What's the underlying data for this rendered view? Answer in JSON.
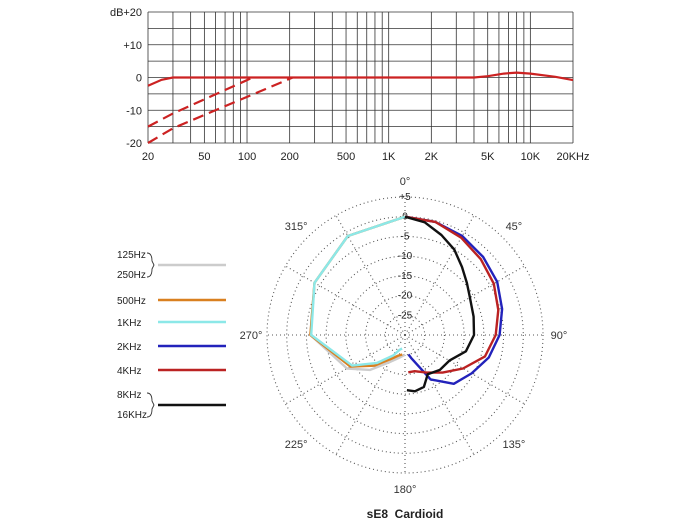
{
  "chart_data": [
    {
      "type": "line",
      "x_scale": "log",
      "xlim": [
        20,
        20000
      ],
      "ylim": [
        -20,
        20
      ],
      "y_unit": "dB",
      "x_ticks": [
        {
          "value": 20,
          "label": "20"
        },
        {
          "value": 50,
          "label": "50"
        },
        {
          "value": 100,
          "label": "100"
        },
        {
          "value": 200,
          "label": "200"
        },
        {
          "value": 500,
          "label": "500"
        },
        {
          "value": 1000,
          "label": "1K"
        },
        {
          "value": 2000,
          "label": "2K"
        },
        {
          "value": 5000,
          "label": "5K"
        },
        {
          "value": 10000,
          "label": "10K"
        },
        {
          "value": 20000,
          "label": "20KHz"
        }
      ],
      "y_ticks": [
        {
          "value": 20,
          "label": "+20"
        },
        {
          "value": 10,
          "label": "+10"
        },
        {
          "value": 0,
          "label": "0"
        },
        {
          "value": -10,
          "label": "-10"
        },
        {
          "value": -20,
          "label": "-20"
        }
      ],
      "grid": true,
      "color": "#cc2222",
      "series": [
        {
          "style": "solid",
          "points": [
            [
              20,
              -2.5
            ],
            [
              25,
              -0.7
            ],
            [
              30,
              0
            ],
            [
              100,
              0
            ],
            [
              1000,
              0
            ],
            [
              4000,
              0
            ],
            [
              5000,
              0.4
            ],
            [
              6500,
              1.2
            ],
            [
              8000,
              1.5
            ],
            [
              10000,
              1.2
            ],
            [
              15000,
              0.2
            ],
            [
              20000,
              -0.8
            ]
          ]
        },
        {
          "style": "dashed",
          "points": [
            [
              20,
              -15
            ],
            [
              30,
              -11
            ],
            [
              110,
              0
            ]
          ]
        },
        {
          "style": "dashed",
          "points": [
            [
              20,
              -20
            ],
            [
              30,
              -15.5
            ],
            [
              210,
              0
            ]
          ]
        }
      ]
    },
    {
      "type": "polar",
      "title": "sE8  Cardioid",
      "rlim": [
        -30,
        5
      ],
      "ring_labels": [
        "+5",
        "0",
        "-5",
        "-10",
        "-15",
        "-20",
        "-25"
      ],
      "angle_labels": [
        {
          "deg": 0,
          "label": "0°"
        },
        {
          "deg": 45,
          "label": "45°"
        },
        {
          "deg": 90,
          "label": "90°"
        },
        {
          "deg": 135,
          "label": "135°"
        },
        {
          "deg": 180,
          "label": "180°"
        },
        {
          "deg": 225,
          "label": "225°"
        },
        {
          "deg": 270,
          "label": "270°"
        },
        {
          "deg": 315,
          "label": "315°"
        }
      ],
      "series": [
        {
          "name": "125Hz / 250Hz",
          "color": "#cccccc",
          "points": [
            [
              360,
              0
            ],
            [
              330,
              -1
            ],
            [
              300,
              -3.5
            ],
            [
              270,
              -6
            ],
            [
              240,
              -13
            ],
            [
              225,
              -17.5
            ],
            [
              210,
              -22
            ],
            [
              195,
              -24
            ],
            [
              180,
              -25
            ]
          ]
        },
        {
          "name": "500Hz",
          "color": "#d98020",
          "points": [
            [
              360,
              0
            ],
            [
              330,
              -1
            ],
            [
              300,
              -3.5
            ],
            [
              270,
              -6
            ],
            [
              240,
              -14
            ],
            [
              225,
              -19
            ],
            [
              210,
              -23
            ],
            [
              198,
              -24.5
            ],
            [
              188,
              -25
            ]
          ]
        },
        {
          "name": "1KHz",
          "color": "#8ce8e8",
          "points": [
            [
              360,
              0
            ],
            [
              330,
              -1
            ],
            [
              300,
              -3.5
            ],
            [
              270,
              -6.2
            ],
            [
              240,
              -14.5
            ],
            [
              225,
              -20
            ],
            [
              210,
              -24
            ],
            [
              200,
              -26
            ],
            [
              192,
              -26.5
            ]
          ]
        },
        {
          "name": "2KHz",
          "color": "#2222bb",
          "points": [
            [
              0,
              0
            ],
            [
              15,
              -0.3
            ],
            [
              30,
              -1
            ],
            [
              45,
              -2
            ],
            [
              60,
              -3
            ],
            [
              75,
              -4.5
            ],
            [
              90,
              -6
            ],
            [
              105,
              -8
            ],
            [
              120,
              -10.5
            ],
            [
              135,
              -12.5
            ],
            [
              150,
              -17
            ],
            [
              165,
              -24
            ],
            [
              170,
              -25
            ]
          ]
        },
        {
          "name": "4KHz",
          "color": "#bb2222",
          "points": [
            [
              0,
              0
            ],
            [
              15,
              -0.3
            ],
            [
              30,
              -1.5
            ],
            [
              45,
              -2.8
            ],
            [
              60,
              -4
            ],
            [
              75,
              -5.5
            ],
            [
              90,
              -7
            ],
            [
              105,
              -9
            ],
            [
              120,
              -13
            ],
            [
              135,
              -16.5
            ],
            [
              150,
              -19
            ],
            [
              165,
              -20.5
            ],
            [
              175,
              -20.5
            ]
          ]
        },
        {
          "name": "8KHz / 16KHz",
          "color": "#111111",
          "points": [
            [
              0,
              0
            ],
            [
              10,
              -1
            ],
            [
              20,
              -3
            ],
            [
              30,
              -5
            ],
            [
              40,
              -7.5
            ],
            [
              50,
              -9.5
            ],
            [
              60,
              -11
            ],
            [
              75,
              -12
            ],
            [
              90,
              -12.5
            ],
            [
              105,
              -14
            ],
            [
              120,
              -17
            ],
            [
              135,
              -17.5
            ],
            [
              150,
              -18.5
            ],
            [
              160,
              -16
            ],
            [
              170,
              -15.5
            ],
            [
              178,
              -16
            ]
          ]
        }
      ],
      "legend": [
        {
          "labels": [
            "125Hz",
            "250Hz"
          ],
          "color": "#cccccc",
          "bracket": true
        },
        {
          "labels": [
            "500Hz"
          ],
          "color": "#d98020",
          "bracket": false
        },
        {
          "labels": [
            "1KHz"
          ],
          "color": "#8ce8e8",
          "bracket": false
        },
        {
          "labels": [
            "2KHz"
          ],
          "color": "#2222bb",
          "bracket": false
        },
        {
          "labels": [
            "4KHz"
          ],
          "color": "#bb2222",
          "bracket": false
        },
        {
          "labels": [
            "8KHz",
            "16KHz"
          ],
          "color": "#111111",
          "bracket": true
        }
      ]
    }
  ],
  "top_axis_unit_label": "dB"
}
